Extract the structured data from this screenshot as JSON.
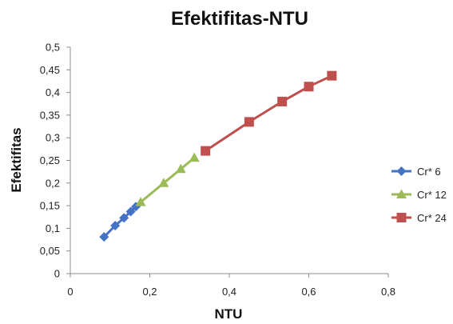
{
  "chart_data": {
    "type": "line",
    "title": "Efektifitas-NTU",
    "xlabel": "NTU",
    "ylabel": "Efektifitas",
    "xlim": [
      0,
      0.8
    ],
    "ylim": [
      0,
      0.5
    ],
    "x_ticks": [
      "0",
      "0,2",
      "0,4",
      "0,6",
      "0,8"
    ],
    "y_ticks": [
      "0",
      "0,05",
      "0,1",
      "0,15",
      "0,2",
      "0,25",
      "0,3",
      "0,35",
      "0,4",
      "0,45",
      "0,5"
    ],
    "grid": false,
    "legend_position": "right",
    "series": [
      {
        "name": "Cr* 6",
        "color": "#4472C4",
        "marker": "diamond",
        "x": [
          0.085,
          0.113,
          0.135,
          0.152,
          0.165
        ],
        "y": [
          0.081,
          0.106,
          0.123,
          0.137,
          0.148
        ]
      },
      {
        "name": "Cr* 12",
        "color": "#9BBB59",
        "marker": "triangle",
        "x": [
          0.177,
          0.235,
          0.278,
          0.312
        ],
        "y": [
          0.158,
          0.2,
          0.231,
          0.256
        ]
      },
      {
        "name": "Cr* 24",
        "color": "#C0504D",
        "marker": "square",
        "x": [
          0.34,
          0.45,
          0.533,
          0.6,
          0.658
        ],
        "y": [
          0.271,
          0.335,
          0.38,
          0.413,
          0.437
        ]
      }
    ]
  }
}
